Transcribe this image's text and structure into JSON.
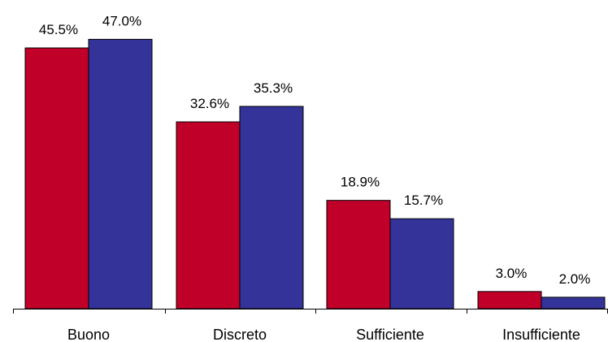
{
  "chart_data": {
    "type": "bar",
    "categories": [
      "Buono",
      "Discreto",
      "Sufficiente",
      "Insufficiente"
    ],
    "series": [
      {
        "values": [
          45.5,
          32.6,
          18.9,
          3.0
        ],
        "labels": [
          "45.5%",
          "32.6%",
          "18.9%",
          "3.0%"
        ],
        "color": "#c00028"
      },
      {
        "values": [
          47.0,
          35.3,
          15.7,
          2.0
        ],
        "labels": [
          "47.0%",
          "35.3%",
          "15.7%",
          "2.0%"
        ],
        "color": "#333399"
      }
    ],
    "ylim": [
      0,
      50
    ],
    "grid": false,
    "legend": "none",
    "title": "",
    "xlabel": "",
    "ylabel": ""
  }
}
